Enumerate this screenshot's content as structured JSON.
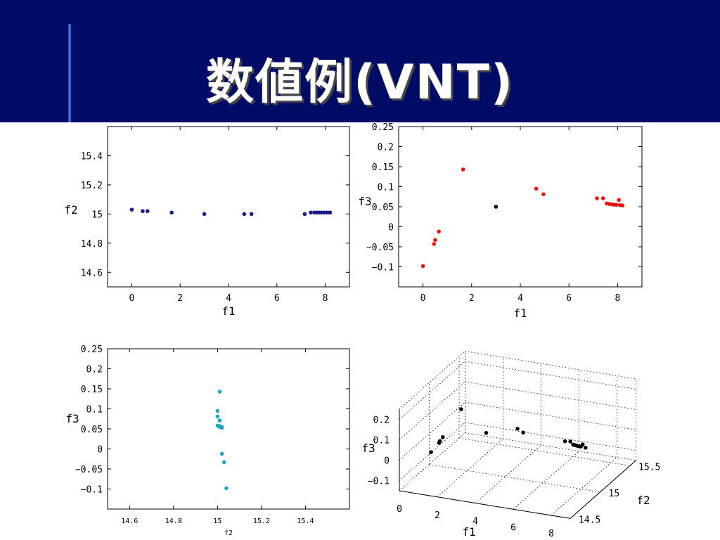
{
  "slide": {
    "title": "数値例(VNT)"
  },
  "chart_data": [
    {
      "type": "scatter",
      "xlabel": "f1",
      "ylabel": "f2",
      "xlim": [
        -1,
        9
      ],
      "ylim": [
        14.5,
        15.6
      ],
      "xticks": [
        "0",
        "2",
        "4",
        "6",
        "8"
      ],
      "yticks": [
        "14.6",
        "14.8",
        "15",
        "15.2",
        "15.4"
      ],
      "color": "#1a1a8c",
      "series": [
        {
          "x": [
            0,
            0.45,
            0.65,
            1.65,
            3,
            4.65,
            4.95,
            7.15,
            7.4,
            7.55,
            7.65,
            7.75,
            7.85,
            7.95,
            8.05,
            8.15,
            8.2
          ],
          "y": [
            15.03,
            15.02,
            15.02,
            15.01,
            15.0,
            15.0,
            15.0,
            15.0,
            15.01,
            15.01,
            15.01,
            15.01,
            15.01,
            15.01,
            15.01,
            15.01,
            15.01
          ]
        }
      ]
    },
    {
      "type": "scatter",
      "xlabel": "f1",
      "ylabel": "f3",
      "xlim": [
        -1,
        9
      ],
      "ylim": [
        -0.15,
        0.25
      ],
      "xticks": [
        "0",
        "2",
        "4",
        "6",
        "8"
      ],
      "yticks": [
        "-0.1",
        "-0.05",
        "0",
        "0.05",
        "0.1",
        "0.15",
        "0.2",
        "0.25"
      ],
      "series": [
        {
          "color": "#ee1111",
          "x": [
            0,
            0.45,
            0.5,
            0.65,
            1.65,
            4.65,
            4.95,
            7.15,
            7.4,
            7.55,
            7.65,
            7.75,
            7.85,
            7.95,
            8.05,
            8.1,
            8.2
          ],
          "y": [
            -0.098,
            -0.043,
            -0.033,
            -0.012,
            0.143,
            0.095,
            0.081,
            0.071,
            0.071,
            0.058,
            0.057,
            0.056,
            0.055,
            0.055,
            0.067,
            0.054,
            0.053
          ]
        },
        {
          "color": "#000000",
          "x": [
            3
          ],
          "y": [
            0.05
          ]
        }
      ]
    },
    {
      "type": "scatter",
      "xlabel": "f2",
      "ylabel": "f3",
      "xlim": [
        14.5,
        15.6
      ],
      "ylim": [
        -0.15,
        0.25
      ],
      "xticks": [
        "14.6",
        "14.8",
        "15",
        "15.2",
        "15.4"
      ],
      "yticks": [
        "-0.1",
        "-0.05",
        "0",
        "0.05",
        "0.1",
        "0.15",
        "0.2",
        "0.25"
      ],
      "color": "#1fa8c0",
      "series": [
        {
          "x": [
            15.01,
            15.0,
            15.0,
            15.01,
            15.0,
            15.01,
            15.01,
            15.02,
            15.02,
            15.02,
            15.02,
            15.03,
            15.04
          ],
          "y": [
            0.143,
            0.095,
            0.081,
            0.071,
            0.058,
            0.057,
            0.055,
            0.055,
            0.054,
            0.053,
            -0.012,
            -0.033,
            -0.098
          ]
        }
      ]
    },
    {
      "type": "scatter3d",
      "xlabel": "f1",
      "ylabel": "f2",
      "zlabel": "f3",
      "xticks": [
        "0",
        "2",
        "4",
        "6",
        "8"
      ],
      "yticks": [
        "14.5",
        "15",
        "15.5"
      ],
      "zticks": [
        "0.2",
        "0.1",
        "0",
        "-0.1"
      ],
      "color": "#000000",
      "series": [
        {
          "x": [
            0,
            0.45,
            0.5,
            0.65,
            1.65,
            3,
            4.65,
            4.95,
            7.15,
            7.4,
            7.55,
            7.65,
            7.75,
            7.85,
            7.95,
            8.05,
            8.2
          ],
          "y": [
            15.03,
            15.02,
            15.02,
            15.02,
            15.01,
            15.0,
            15.0,
            15.0,
            15.0,
            15.01,
            15.01,
            15.01,
            15.01,
            15.01,
            15.01,
            15.01,
            15.01
          ],
          "z": [
            -0.098,
            -0.043,
            -0.033,
            -0.012,
            0.143,
            0.05,
            0.095,
            0.081,
            0.071,
            0.071,
            0.058,
            0.057,
            0.056,
            0.055,
            0.055,
            0.067,
            0.053
          ]
        }
      ]
    }
  ]
}
